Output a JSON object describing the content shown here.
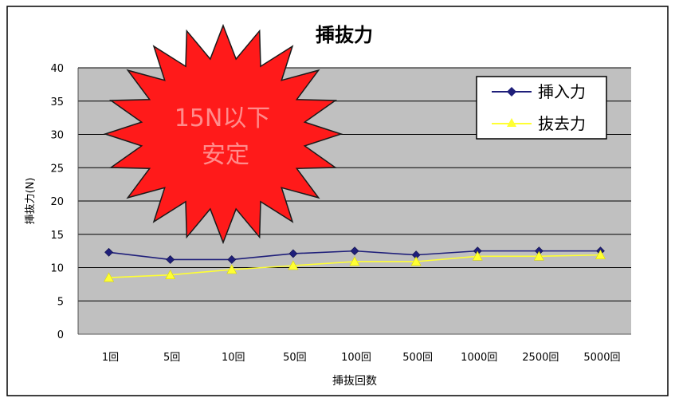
{
  "chart_data": {
    "type": "line",
    "title": "挿抜力",
    "xlabel": "挿抜回数",
    "ylabel": "挿抜力(N)",
    "categories": [
      "1回",
      "5回",
      "10回",
      "50回",
      "100回",
      "500回",
      "1000回",
      "2500回",
      "5000回"
    ],
    "ylim": [
      0,
      40
    ],
    "yticks": [
      "0",
      "5",
      "10",
      "15",
      "20",
      "25",
      "30",
      "35",
      "40"
    ],
    "grid": true,
    "legend_position": "top-right",
    "series": [
      {
        "name": "挿入力",
        "color": "#1f1f7a",
        "marker": "diamond",
        "values": [
          12.3,
          11.2,
          11.2,
          12.1,
          12.5,
          11.9,
          12.5,
          12.5,
          12.5
        ]
      },
      {
        "name": "抜去力",
        "color": "#ffff33",
        "marker": "triangle",
        "values": [
          8.5,
          8.9,
          9.7,
          10.3,
          10.9,
          10.9,
          11.7,
          11.7,
          11.9
        ]
      }
    ],
    "annotation": {
      "lines": [
        "15N以下",
        "安定"
      ],
      "fill": "#ff1a1a",
      "text_color": "#ff8c8c"
    },
    "plot_background": "#c0c0c0"
  }
}
